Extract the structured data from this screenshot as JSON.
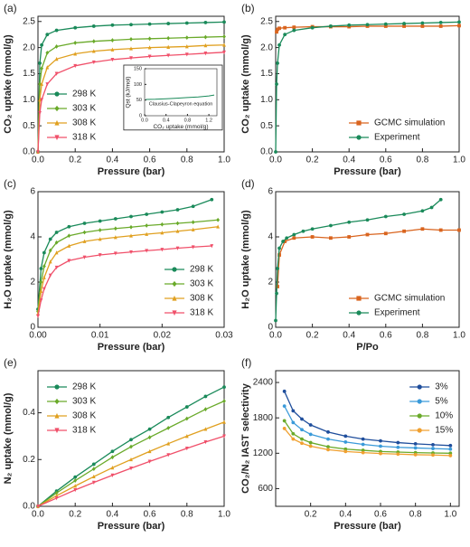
{
  "chart_data": [
    {
      "type": "line",
      "panel_label": "(a)",
      "xlabel": "Pressure (bar)",
      "ylabel": "CO₂ uptake (mmol/g)",
      "legend": "lower left",
      "x": [
        0,
        0.01,
        0.02,
        0.05,
        0.1,
        0.2,
        0.3,
        0.4,
        0.5,
        0.6,
        0.7,
        0.8,
        0.9,
        1.0
      ],
      "xlim": [
        0,
        1.0
      ],
      "ylim": [
        0,
        2.6
      ],
      "xticks": [
        {
          "value": 0,
          "label": "0.0"
        },
        0.2,
        0.4,
        0.6,
        0.8,
        {
          "value": 1,
          "label": "1.0"
        }
      ],
      "yticks": [
        {
          "value": 0,
          "label": "0.0"
        },
        0.5,
        {
          "value": 1,
          "label": "1.0"
        },
        1.5,
        {
          "value": 2,
          "label": "2.0"
        },
        2.5
      ],
      "series": [
        {
          "name": "298 K",
          "color": "#1a8a5a",
          "marker": "circle",
          "values": [
            0,
            1.7,
            2.05,
            2.25,
            2.33,
            2.38,
            2.41,
            2.43,
            2.44,
            2.45,
            2.46,
            2.47,
            2.48,
            2.49
          ]
        },
        {
          "name": "303 K",
          "color": "#6aaa2a",
          "marker": "diamond",
          "values": [
            0,
            1.3,
            1.6,
            1.9,
            2.02,
            2.09,
            2.12,
            2.14,
            2.16,
            2.17,
            2.18,
            2.19,
            2.2,
            2.21
          ]
        },
        {
          "name": "308 K",
          "color": "#e0a020",
          "marker": "triangle-up",
          "values": [
            0,
            1.0,
            1.3,
            1.62,
            1.78,
            1.88,
            1.93,
            1.96,
            1.98,
            2.0,
            2.01,
            2.02,
            2.04,
            2.05
          ]
        },
        {
          "name": "318 K",
          "color": "#f0506a",
          "marker": "triangle-down",
          "values": [
            0,
            0.75,
            1.0,
            1.3,
            1.5,
            1.65,
            1.72,
            1.77,
            1.8,
            1.83,
            1.85,
            1.87,
            1.89,
            1.91
          ]
        }
      ],
      "inset": {
        "type": "line",
        "xlabel": "CO₂ uptake (mmol/g)",
        "ylabel": "Qst (kJ/mol)",
        "note": "Clausius-Clapeyron equation",
        "x": [
          0.02,
          0.2,
          0.4,
          0.6,
          0.8,
          1.0,
          1.2,
          1.3
        ],
        "xlim": [
          0,
          1.35
        ],
        "ylim": [
          0,
          150
        ],
        "xticks": [
          {
            "value": 0,
            "label": "0.0"
          },
          0.4,
          0.8,
          1.2
        ],
        "yticks": [
          0,
          50,
          100,
          150
        ],
        "series": [
          {
            "color": "#1a8a5a",
            "values": [
              52,
              52.5,
              54,
              56,
              58,
              60,
              63,
              66
            ]
          }
        ]
      }
    },
    {
      "type": "line",
      "panel_label": "(b)",
      "xlabel": "Pressure (bar)",
      "ylabel": "CO₂ uptake (mmol/g)",
      "legend": "lower right",
      "xlim": [
        0,
        1.0
      ],
      "ylim": [
        0,
        2.6
      ],
      "xticks": [
        {
          "value": 0,
          "label": "0.0"
        },
        0.2,
        0.4,
        0.6,
        0.8,
        {
          "value": 1,
          "label": "1.0"
        }
      ],
      "yticks": [
        {
          "value": 0,
          "label": "0.0"
        },
        0.5,
        {
          "value": 1,
          "label": "1.0"
        },
        1.5,
        {
          "value": 2,
          "label": "2.0"
        },
        2.5
      ],
      "series": [
        {
          "name": "GCMC simulation",
          "color": "#d9641e",
          "marker": "square",
          "x": [
            0.005,
            0.01,
            0.02,
            0.05,
            0.1,
            0.2,
            0.3,
            0.4,
            0.5,
            0.6,
            0.7,
            0.8,
            0.9,
            1.0
          ],
          "values": [
            2.3,
            2.35,
            2.37,
            2.38,
            2.39,
            2.4,
            2.4,
            2.4,
            2.41,
            2.41,
            2.41,
            2.41,
            2.41,
            2.42
          ]
        },
        {
          "name": "Experiment",
          "color": "#1a8a5a",
          "marker": "circle",
          "x": [
            0,
            0.005,
            0.01,
            0.02,
            0.05,
            0.1,
            0.2,
            0.3,
            0.4,
            0.5,
            0.6,
            0.7,
            0.8,
            0.9,
            1.0
          ],
          "values": [
            0,
            1.3,
            1.7,
            2.05,
            2.25,
            2.33,
            2.38,
            2.41,
            2.43,
            2.44,
            2.45,
            2.46,
            2.47,
            2.48,
            2.49
          ]
        }
      ]
    },
    {
      "type": "line",
      "panel_label": "(c)",
      "xlabel": "Pressure (bar)",
      "ylabel": "H₂O uptake (mmol/g)",
      "legend": "lower right",
      "xlim": [
        0,
        0.03
      ],
      "ylim": [
        0,
        6
      ],
      "xticks": [
        {
          "value": 0,
          "label": "0.00"
        },
        0.01,
        0.02,
        0.03
      ],
      "yticks": [
        0,
        2,
        4,
        6
      ],
      "series": [
        {
          "name": "298 K",
          "color": "#1a8a5a",
          "marker": "circle",
          "x": [
            0,
            0.0005,
            0.001,
            0.002,
            0.003,
            0.005,
            0.0075,
            0.01,
            0.0125,
            0.015,
            0.0175,
            0.02,
            0.0225,
            0.025,
            0.028
          ],
          "values": [
            0.8,
            2.6,
            3.3,
            3.9,
            4.2,
            4.45,
            4.6,
            4.7,
            4.8,
            4.9,
            5.0,
            5.1,
            5.2,
            5.35,
            5.65
          ]
        },
        {
          "name": "303 K",
          "color": "#6aaa2a",
          "marker": "diamond",
          "x": [
            0,
            0.0005,
            0.001,
            0.002,
            0.003,
            0.005,
            0.0075,
            0.01,
            0.0125,
            0.015,
            0.0175,
            0.02,
            0.0225,
            0.025,
            0.029
          ],
          "values": [
            0.7,
            2.0,
            2.7,
            3.4,
            3.75,
            4.05,
            4.2,
            4.3,
            4.37,
            4.43,
            4.5,
            4.55,
            4.6,
            4.65,
            4.75
          ]
        },
        {
          "name": "308 K",
          "color": "#e0a020",
          "marker": "triangle-up",
          "x": [
            0,
            0.0005,
            0.001,
            0.002,
            0.003,
            0.005,
            0.0075,
            0.01,
            0.0125,
            0.015,
            0.0175,
            0.02,
            0.0225,
            0.025,
            0.029
          ],
          "values": [
            0.6,
            1.6,
            2.2,
            2.9,
            3.3,
            3.6,
            3.8,
            3.9,
            3.98,
            4.05,
            4.12,
            4.18,
            4.25,
            4.32,
            4.45
          ]
        },
        {
          "name": "318 K",
          "color": "#f0506a",
          "marker": "triangle-down",
          "x": [
            0,
            0.0005,
            0.001,
            0.002,
            0.003,
            0.005,
            0.0075,
            0.01,
            0.0125,
            0.015,
            0.0175,
            0.02,
            0.0225,
            0.025,
            0.028
          ],
          "values": [
            0.5,
            1.2,
            1.7,
            2.3,
            2.65,
            2.95,
            3.1,
            3.2,
            3.27,
            3.33,
            3.39,
            3.44,
            3.5,
            3.55,
            3.6
          ]
        }
      ]
    },
    {
      "type": "line",
      "panel_label": "(d)",
      "xlabel": "P/Po",
      "ylabel": "H₂O uptake (mmol/g)",
      "legend": "lower right",
      "xlim": [
        0,
        1.0
      ],
      "ylim": [
        0,
        6
      ],
      "xticks": [
        {
          "value": 0,
          "label": "0.0"
        },
        0.2,
        0.4,
        0.6,
        0.8,
        {
          "value": 1,
          "label": "1.0"
        }
      ],
      "yticks": [
        0,
        2,
        4,
        6
      ],
      "series": [
        {
          "name": "GCMC simulation",
          "color": "#d9641e",
          "marker": "square",
          "x": [
            0.01,
            0.02,
            0.05,
            0.1,
            0.2,
            0.3,
            0.4,
            0.5,
            0.6,
            0.7,
            0.8,
            0.9,
            1.0
          ],
          "values": [
            1.8,
            3.2,
            3.8,
            3.95,
            4.0,
            3.95,
            4.0,
            4.1,
            4.15,
            4.25,
            4.35,
            4.3,
            4.3
          ]
        },
        {
          "name": "Experiment",
          "color": "#1a8a5a",
          "marker": "circle",
          "x": [
            0,
            0.005,
            0.01,
            0.02,
            0.04,
            0.06,
            0.1,
            0.15,
            0.2,
            0.3,
            0.4,
            0.5,
            0.6,
            0.7,
            0.8,
            0.85,
            0.9
          ],
          "values": [
            0.3,
            1.5,
            2.6,
            3.5,
            3.8,
            3.95,
            4.1,
            4.25,
            4.35,
            4.5,
            4.65,
            4.75,
            4.9,
            5.0,
            5.15,
            5.3,
            5.65
          ]
        }
      ]
    },
    {
      "type": "line",
      "panel_label": "(e)",
      "xlabel": "Pressure (bar)",
      "ylabel": "N₂ uptake (mmol/g)",
      "legend": "upper left",
      "x": [
        0,
        0.1,
        0.2,
        0.3,
        0.4,
        0.5,
        0.6,
        0.7,
        0.8,
        0.9,
        1.0
      ],
      "xlim": [
        0,
        1.0
      ],
      "ylim": [
        0,
        0.58
      ],
      "xticks": [
        {
          "value": 0,
          "label": "0.0"
        },
        0.2,
        0.4,
        0.6,
        0.8,
        {
          "value": 1,
          "label": "1.0"
        }
      ],
      "yticks": [
        {
          "value": 0,
          "label": "0.0"
        },
        0.2,
        0.4
      ],
      "series": [
        {
          "name": "298 K",
          "color": "#1a8a5a",
          "marker": "circle",
          "values": [
            0,
            0.065,
            0.125,
            0.18,
            0.235,
            0.285,
            0.33,
            0.38,
            0.425,
            0.47,
            0.51
          ]
        },
        {
          "name": "303 K",
          "color": "#6aaa2a",
          "marker": "diamond",
          "values": [
            0,
            0.057,
            0.11,
            0.16,
            0.21,
            0.255,
            0.295,
            0.335,
            0.375,
            0.415,
            0.45
          ]
        },
        {
          "name": "308 K",
          "color": "#e0a020",
          "marker": "triangle-up",
          "values": [
            0,
            0.045,
            0.087,
            0.127,
            0.165,
            0.2,
            0.235,
            0.268,
            0.3,
            0.33,
            0.36
          ]
        },
        {
          "name": "318 K",
          "color": "#f0506a",
          "marker": "triangle-down",
          "values": [
            0,
            0.035,
            0.07,
            0.102,
            0.133,
            0.163,
            0.192,
            0.22,
            0.248,
            0.275,
            0.3
          ]
        }
      ]
    },
    {
      "type": "line",
      "panel_label": "(f)",
      "xlabel": "Pressure (bar)",
      "ylabel": "CO₂/N₂ IAST selectivity",
      "legend": "upper right",
      "x": [
        0.05,
        0.1,
        0.15,
        0.2,
        0.3,
        0.4,
        0.5,
        0.6,
        0.7,
        0.8,
        0.9,
        1.0
      ],
      "xlim": [
        0,
        1.05
      ],
      "ylim": [
        300,
        2600
      ],
      "xticks": [
        0.2,
        0.4,
        0.6,
        0.8,
        {
          "value": 1,
          "label": "1.0"
        }
      ],
      "yticks": [
        600,
        1200,
        1800,
        2400
      ],
      "series": [
        {
          "name": "3%",
          "color": "#1f4e9c",
          "marker": "circle",
          "values": [
            2250,
            1920,
            1780,
            1680,
            1560,
            1490,
            1440,
            1410,
            1380,
            1360,
            1345,
            1330
          ]
        },
        {
          "name": "5%",
          "color": "#3a9ad9",
          "marker": "circle",
          "values": [
            2000,
            1720,
            1600,
            1520,
            1440,
            1390,
            1350,
            1320,
            1300,
            1290,
            1280,
            1270
          ]
        },
        {
          "name": "10%",
          "color": "#6aaa2a",
          "marker": "circle",
          "values": [
            1750,
            1530,
            1440,
            1380,
            1310,
            1270,
            1250,
            1230,
            1220,
            1210,
            1205,
            1200
          ]
        },
        {
          "name": "15%",
          "color": "#f0a030",
          "marker": "circle",
          "values": [
            1620,
            1440,
            1370,
            1320,
            1260,
            1230,
            1210,
            1195,
            1185,
            1175,
            1170,
            1160
          ]
        }
      ]
    }
  ]
}
